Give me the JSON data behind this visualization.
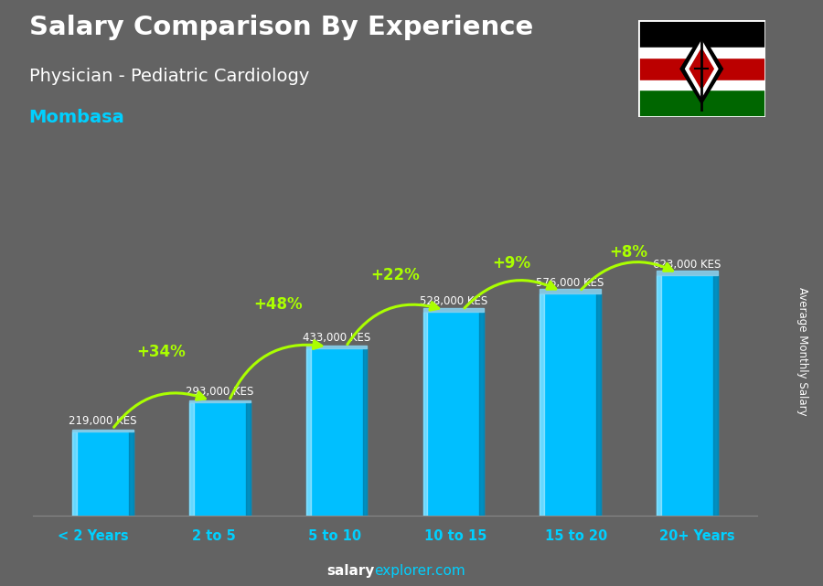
{
  "title_line1": "Salary Comparison By Experience",
  "title_line2": "Physician - Pediatric Cardiology",
  "city": "Mombasa",
  "ylabel": "Average Monthly Salary",
  "footer_plain": "salary",
  "footer_colored": "explorer.com",
  "categories": [
    "< 2 Years",
    "2 to 5",
    "5 to 10",
    "10 to 15",
    "15 to 20",
    "20+ Years"
  ],
  "values": [
    219000,
    293000,
    433000,
    528000,
    576000,
    623000
  ],
  "labels": [
    "219,000 KES",
    "293,000 KES",
    "433,000 KES",
    "528,000 KES",
    "576,000 KES",
    "623,000 KES"
  ],
  "pct_labels": [
    "+34%",
    "+48%",
    "+22%",
    "+9%",
    "+8%"
  ],
  "bar_color": "#00BFFF",
  "background_color": "#636363",
  "title_color": "#FFFFFF",
  "city_color": "#00D0FF",
  "label_color": "#FFFFFF",
  "pct_color": "#AAFF00",
  "axis_label_color": "#FFFFFF",
  "category_color": "#00D0FF",
  "footer_plain_color": "#FFFFFF",
  "footer_colored_color": "#00D0FF",
  "ylim": [
    0,
    850000
  ],
  "flag_colors": [
    "#000000",
    "#BB0000",
    "#006600"
  ],
  "flag_white": "#FFFFFF"
}
